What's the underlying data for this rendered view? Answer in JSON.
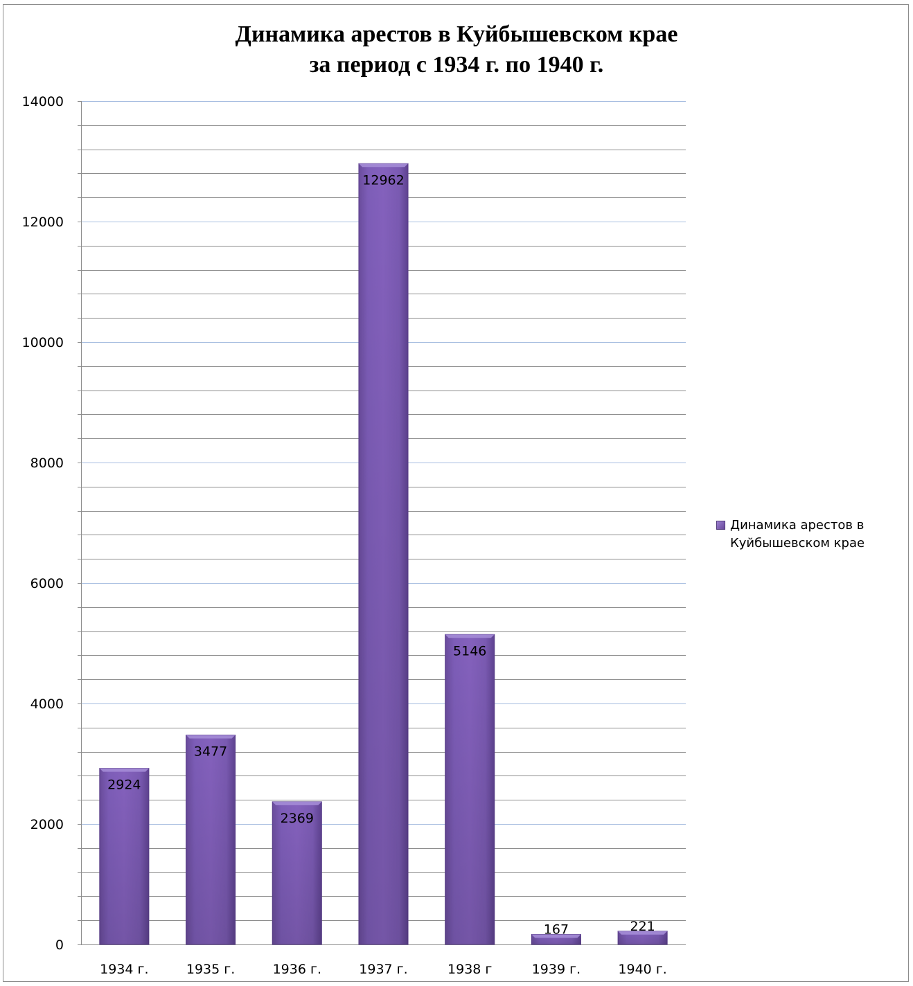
{
  "chart_data": {
    "type": "bar",
    "title_line1": "Динамика арестов в Куйбышевском крае",
    "title_line2": "за период с 1934 г. по 1940 г.",
    "categories": [
      "1934 г.",
      "1935 г.",
      "1936 г.",
      "1937 г.",
      "1938 г",
      "1939 г.",
      "1940 г."
    ],
    "series": [
      {
        "name": "Динамика арестов в Куйбышевском крае",
        "values": [
          2924,
          3477,
          2369,
          12962,
          5146,
          167,
          221
        ],
        "color": "#7c5cb5"
      }
    ],
    "ylim": [
      0,
      14000
    ],
    "y_ticks": [
      "0",
      "2000",
      "4000",
      "6000",
      "8000",
      "10000",
      "12000",
      "14000"
    ],
    "gridlines": true,
    "legend_position": "right",
    "data_labels": true
  }
}
